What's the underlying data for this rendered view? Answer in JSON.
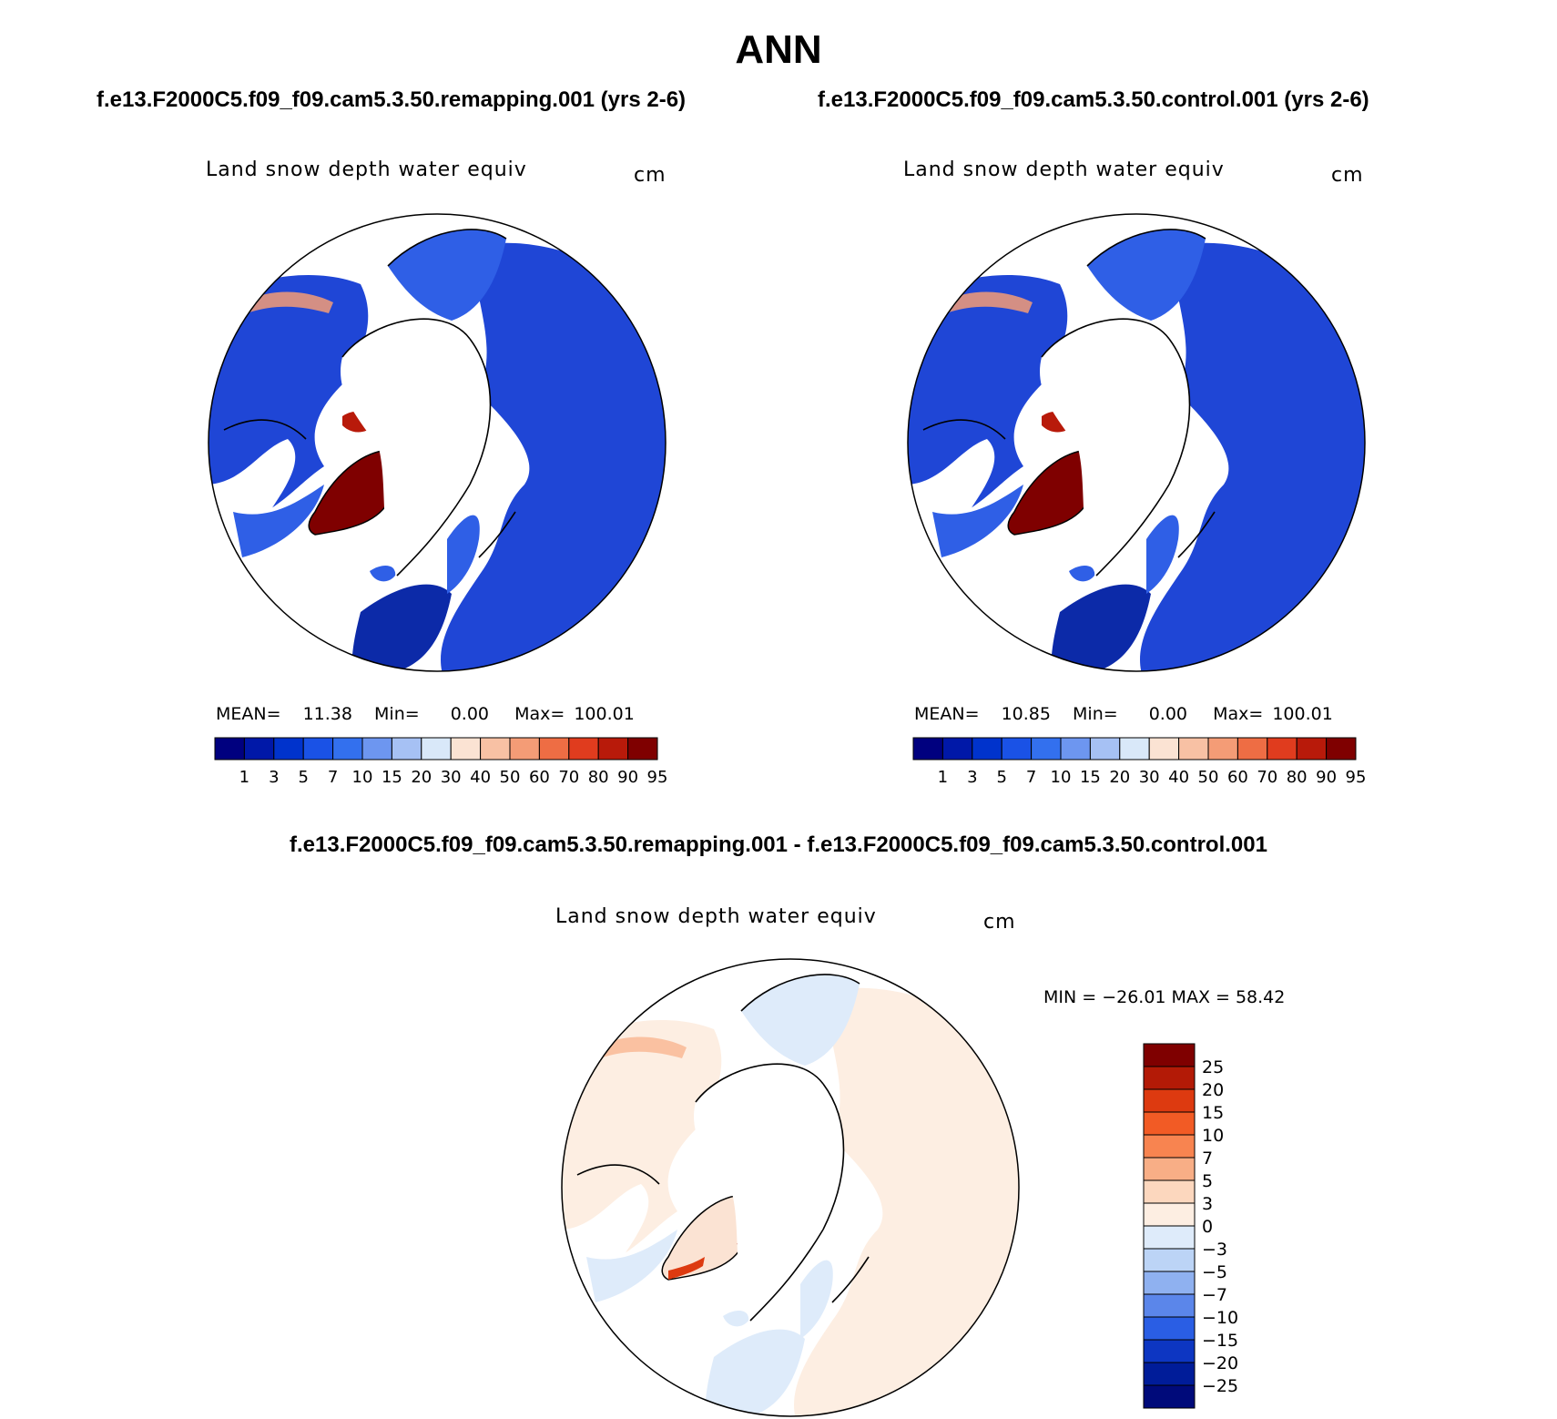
{
  "title": "ANN",
  "panels": [
    {
      "case_title": "f.e13.F2000C5.f09_f09.cam5.3.50.remapping.001 (yrs 2-6)",
      "variable": "Land snow depth water equiv",
      "units": "cm",
      "stats": {
        "mean_label": "MEAN=",
        "mean": "11.38",
        "min_label": "Min=",
        "min": "0.00",
        "max_label": "Max=",
        "max": "100.01"
      }
    },
    {
      "case_title": "f.e13.F2000C5.f09_f09.cam5.3.50.control.001 (yrs 2-6)",
      "variable": "Land snow depth water equiv",
      "units": "cm",
      "stats": {
        "mean_label": "MEAN=",
        "mean": "10.85",
        "min_label": "Min=",
        "min": "0.00",
        "max_label": "Max=",
        "max": "100.01"
      }
    }
  ],
  "colorbar": {
    "levels": [
      "1",
      "3",
      "5",
      "7",
      "10",
      "15",
      "20",
      "30",
      "40",
      "50",
      "60",
      "70",
      "80",
      "90",
      "95"
    ],
    "colors": [
      "#00007f",
      "#0018a8",
      "#0033cc",
      "#1a52e6",
      "#3370ee",
      "#6d96f0",
      "#a6c1f4",
      "#d9e8f9",
      "#fbe3d3",
      "#f8c1a4",
      "#f49c76",
      "#ee6d44",
      "#e03c1e",
      "#b81a0a",
      "#7f0000"
    ]
  },
  "difference": {
    "title": "f.e13.F2000C5.f09_f09.cam5.3.50.remapping.001 - f.e13.F2000C5.f09_f09.cam5.3.50.control.001",
    "variable": "Land snow depth water equiv",
    "units": "cm",
    "minmax": "MIN = −26.01  MAX =   58.42",
    "levels": [
      "25",
      "20",
      "15",
      "10",
      "7",
      "5",
      "3",
      "0",
      "−3",
      "−5",
      "−7",
      "−10",
      "−15",
      "−20",
      "−25"
    ],
    "colors": [
      "#7f0000",
      "#b31a06",
      "#dd3a10",
      "#f25b25",
      "#f88450",
      "#f8ae86",
      "#fcd7be",
      "#fdeee2",
      "#deebfa",
      "#bcd4f6",
      "#8fb1f0",
      "#5b86ea",
      "#2a5ee4",
      "#0d36c2",
      "#001c99",
      "#000a7a"
    ]
  }
}
